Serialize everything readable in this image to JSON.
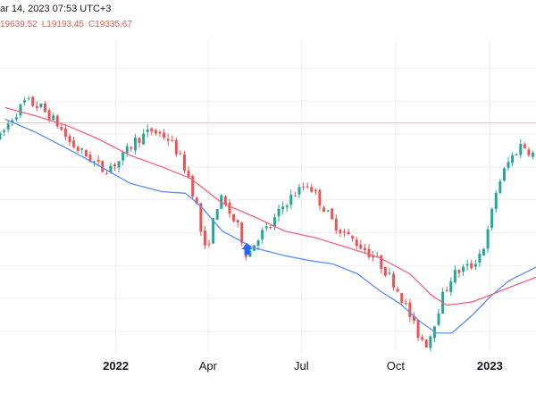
{
  "header": {
    "date_text": "ar 14, 2023 07:53 UTC+3",
    "ohlc": [
      {
        "text": "19639.52",
        "color": "#ef5350"
      },
      {
        "text": "L19193.45",
        "color": "#ef5350"
      },
      {
        "text": "C19335.67",
        "color": "#ef5350"
      }
    ]
  },
  "colors": {
    "up": "#26a69a",
    "down": "#ef5350",
    "ma_fast": "#5b8def",
    "ma_slow": "#f0627f",
    "grid": "#eceff3",
    "price_line": "#f7b3b8",
    "marker": "#2962ff"
  },
  "marker": {
    "icon": "arrow-up-icon",
    "x": "2022-05-09"
  },
  "chart_data": {
    "type": "candlestick",
    "title": "",
    "xlabel": "",
    "ylabel": "",
    "x_ticks": [
      {
        "label": "2022",
        "x": "2022-01-01",
        "bold": true
      },
      {
        "label": "Apr",
        "x": "2022-04-01",
        "bold": false
      },
      {
        "label": "Jul",
        "x": "2022-07-01",
        "bold": false
      },
      {
        "label": "Oct",
        "x": "2022-10-01",
        "bold": false
      },
      {
        "label": "2023",
        "x": "2023-01-01",
        "bold": true
      }
    ],
    "x_range": [
      "2021-09-10",
      "2023-02-15"
    ],
    "y_range": [
      12350,
      21850
    ],
    "last_close": 19335.67,
    "grid": true,
    "series": [
      {
        "kind": "line",
        "color_key": "ma_fast",
        "points": [
          [
            "2021-09-15",
            19450
          ],
          [
            "2021-10-15",
            19050
          ],
          [
            "2021-11-15",
            18550
          ],
          [
            "2021-12-15",
            18050
          ],
          [
            "2022-01-15",
            17500
          ],
          [
            "2022-02-15",
            17250
          ],
          [
            "2022-03-10",
            17200
          ],
          [
            "2022-03-25",
            16800
          ],
          [
            "2022-04-15",
            16050
          ],
          [
            "2022-05-15",
            15550
          ],
          [
            "2022-06-15",
            15300
          ],
          [
            "2022-07-10",
            15150
          ],
          [
            "2022-08-01",
            15050
          ],
          [
            "2022-08-25",
            14750
          ],
          [
            "2022-09-15",
            14250
          ],
          [
            "2022-10-05",
            13850
          ],
          [
            "2022-10-25",
            13300
          ],
          [
            "2022-11-10",
            12950
          ],
          [
            "2022-11-25",
            12950
          ],
          [
            "2022-12-15",
            13500
          ],
          [
            "2023-01-01",
            14050
          ],
          [
            "2023-01-20",
            14550
          ],
          [
            "2023-02-15",
            14950
          ]
        ]
      },
      {
        "kind": "line",
        "color_key": "ma_slow",
        "points": [
          [
            "2021-09-15",
            19800
          ],
          [
            "2021-10-15",
            19550
          ],
          [
            "2021-11-15",
            19250
          ],
          [
            "2021-12-15",
            18850
          ],
          [
            "2022-01-15",
            18350
          ],
          [
            "2022-02-15",
            18000
          ],
          [
            "2022-03-15",
            17650
          ],
          [
            "2022-04-15",
            16900
          ],
          [
            "2022-05-15",
            16500
          ],
          [
            "2022-06-15",
            16050
          ],
          [
            "2022-07-15",
            15850
          ],
          [
            "2022-08-15",
            15550
          ],
          [
            "2022-09-15",
            15250
          ],
          [
            "2022-10-15",
            14750
          ],
          [
            "2022-11-05",
            14100
          ],
          [
            "2022-11-20",
            13800
          ],
          [
            "2022-12-15",
            13900
          ],
          [
            "2023-01-01",
            14100
          ],
          [
            "2023-01-25",
            14400
          ],
          [
            "2023-02-15",
            14650
          ]
        ]
      },
      {
        "kind": "candles",
        "anchors": [
          [
            "2021-09-10",
            18900
          ],
          [
            "2021-09-22",
            19500
          ],
          [
            "2021-10-05",
            20000
          ],
          [
            "2021-10-20",
            19800
          ],
          [
            "2021-11-05",
            19300
          ],
          [
            "2021-11-18",
            18700
          ],
          [
            "2021-12-05",
            18300
          ],
          [
            "2021-12-20",
            17900
          ],
          [
            "2022-01-05",
            18200
          ],
          [
            "2022-01-20",
            18800
          ],
          [
            "2022-02-05",
            19100
          ],
          [
            "2022-02-20",
            18900
          ],
          [
            "2022-03-01",
            18500
          ],
          [
            "2022-03-12",
            17800
          ],
          [
            "2022-03-22",
            16700
          ],
          [
            "2022-03-28",
            15400
          ],
          [
            "2022-04-02",
            15800
          ],
          [
            "2022-04-12",
            17100
          ],
          [
            "2022-04-22",
            16600
          ],
          [
            "2022-05-01",
            16100
          ],
          [
            "2022-05-09",
            15300
          ],
          [
            "2022-05-20",
            15900
          ],
          [
            "2022-06-01",
            16200
          ],
          [
            "2022-06-15",
            16900
          ],
          [
            "2022-06-25",
            17200
          ],
          [
            "2022-07-08",
            17500
          ],
          [
            "2022-07-18",
            17000
          ],
          [
            "2022-08-01",
            16300
          ],
          [
            "2022-08-15",
            15900
          ],
          [
            "2022-09-01",
            15500
          ],
          [
            "2022-09-15",
            15100
          ],
          [
            "2022-10-01",
            14400
          ],
          [
            "2022-10-12",
            13700
          ],
          [
            "2022-10-22",
            12950
          ],
          [
            "2022-11-01",
            12600
          ],
          [
            "2022-11-08",
            13300
          ],
          [
            "2022-11-15",
            14000
          ],
          [
            "2022-11-25",
            14700
          ],
          [
            "2022-12-05",
            14900
          ],
          [
            "2022-12-15",
            15000
          ],
          [
            "2022-12-28",
            15700
          ],
          [
            "2023-01-08",
            17400
          ],
          [
            "2023-01-20",
            18200
          ],
          [
            "2023-02-01",
            18700
          ],
          [
            "2023-02-15",
            18300
          ]
        ]
      }
    ]
  }
}
